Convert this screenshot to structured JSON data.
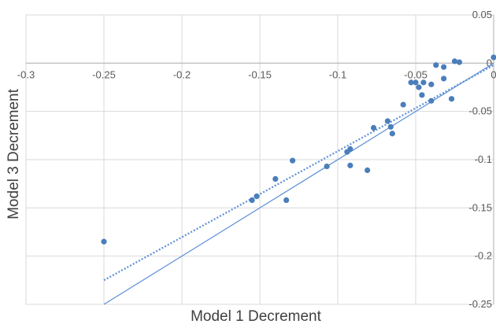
{
  "chart_data": {
    "type": "scatter",
    "title": "",
    "xlabel": "Model 1 Decrement",
    "ylabel": "Model 3 Decrement",
    "xlim": [
      -0.3,
      0
    ],
    "ylim": [
      -0.25,
      0.05
    ],
    "x_ticks": [
      -0.3,
      -0.25,
      -0.2,
      -0.15,
      -0.1,
      -0.05,
      0
    ],
    "y_ticks": [
      0.05,
      0,
      -0.05,
      -0.1,
      -0.15,
      -0.2,
      -0.25
    ],
    "x_tick_labels": [
      "-0.3",
      "-0.25",
      "-0.2",
      "-0.15",
      "-0.1",
      "-0.05",
      "0"
    ],
    "y_tick_labels": [
      "0.05",
      "0",
      "-0.05",
      "-0.1",
      "-0.15",
      "-0.2",
      "-0.25"
    ],
    "grid": true,
    "legend": "none",
    "colors": {
      "points": "#4a7ebb",
      "lines": "#5b8ed6",
      "grid": "#d9d9d9",
      "axis": "#bfbfbf"
    },
    "series": [
      {
        "values": [
          {
            "x": -0.25,
            "y": -0.185
          },
          {
            "x": -0.155,
            "y": -0.142
          },
          {
            "x": -0.152,
            "y": -0.138
          },
          {
            "x": -0.14,
            "y": -0.12
          },
          {
            "x": -0.133,
            "y": -0.142
          },
          {
            "x": -0.129,
            "y": -0.101
          },
          {
            "x": -0.107,
            "y": -0.107
          },
          {
            "x": -0.094,
            "y": -0.092
          },
          {
            "x": -0.092,
            "y": -0.089
          },
          {
            "x": -0.092,
            "y": -0.106
          },
          {
            "x": -0.081,
            "y": -0.111
          },
          {
            "x": -0.077,
            "y": -0.067
          },
          {
            "x": -0.068,
            "y": -0.06
          },
          {
            "x": -0.066,
            "y": -0.066
          },
          {
            "x": -0.065,
            "y": -0.073
          },
          {
            "x": -0.058,
            "y": -0.043
          },
          {
            "x": -0.053,
            "y": -0.02
          },
          {
            "x": -0.05,
            "y": -0.02
          },
          {
            "x": -0.048,
            "y": -0.025
          },
          {
            "x": -0.046,
            "y": -0.033
          },
          {
            "x": -0.045,
            "y": -0.02
          },
          {
            "x": -0.04,
            "y": -0.039
          },
          {
            "x": -0.04,
            "y": -0.022
          },
          {
            "x": -0.037,
            "y": -0.002
          },
          {
            "x": -0.032,
            "y": -0.016
          },
          {
            "x": -0.032,
            "y": -0.004
          },
          {
            "x": -0.027,
            "y": -0.037
          },
          {
            "x": -0.025,
            "y": 0.002
          },
          {
            "x": -0.022,
            "y": 0.001
          },
          {
            "x": 0,
            "y": 0.006
          }
        ]
      }
    ],
    "reference_lines": [
      {
        "style": "solid",
        "x": [
          -0.25,
          0
        ],
        "y": [
          -0.25,
          0
        ]
      },
      {
        "style": "dotted",
        "x": [
          -0.25,
          0
        ],
        "y": [
          -0.225,
          -0.002
        ]
      }
    ]
  }
}
